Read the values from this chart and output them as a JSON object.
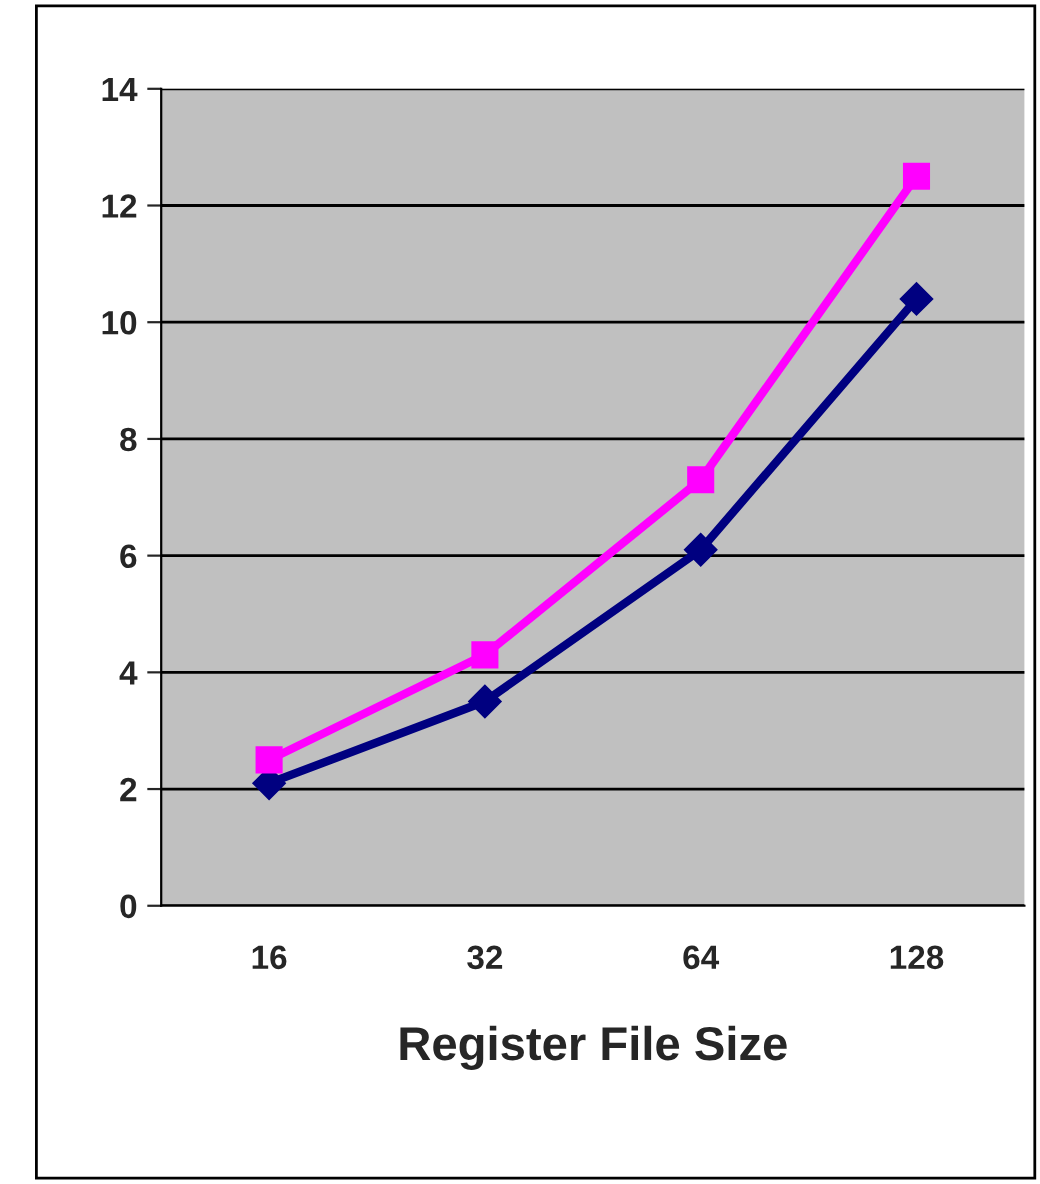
{
  "chart_data": {
    "type": "line",
    "xlabel": "Register File Size",
    "categories": [
      "16",
      "32",
      "64",
      "128"
    ],
    "series": [
      {
        "color": "#000080",
        "marker": "diamond",
        "values": [
          2.1,
          3.5,
          6.1,
          10.4
        ]
      },
      {
        "color": "#ff00ff",
        "marker": "square",
        "values": [
          2.5,
          4.3,
          7.3,
          12.5
        ]
      }
    ],
    "ylim": [
      0,
      14
    ],
    "yticks": [
      0,
      2,
      4,
      6,
      8,
      10,
      12,
      14
    ],
    "grid": "y",
    "legend": false
  }
}
